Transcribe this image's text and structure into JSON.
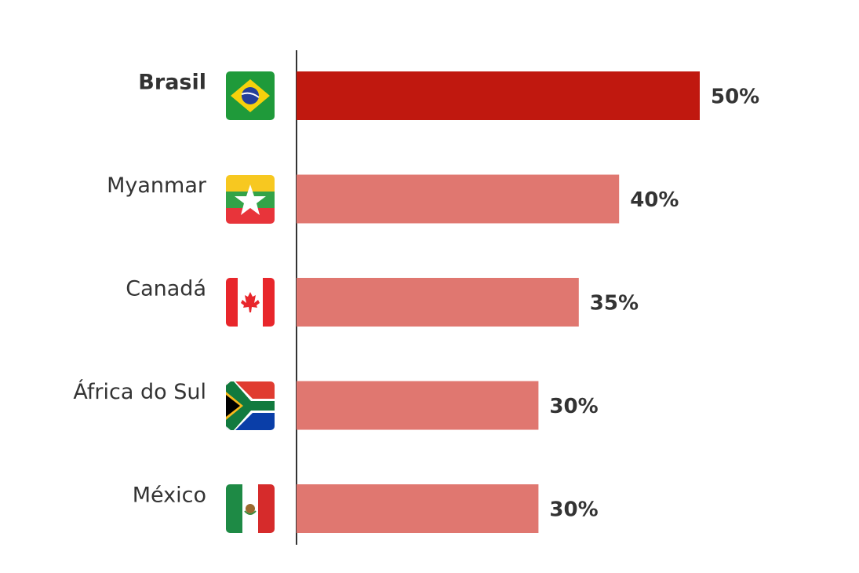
{
  "chart_data": {
    "type": "bar",
    "orientation": "horizontal",
    "categories": [
      "Brasil",
      "Myanmar",
      "Canadá",
      "África do Sul",
      "México"
    ],
    "values": [
      50,
      40,
      35,
      30,
      30
    ],
    "value_labels": [
      "50%",
      "40%",
      "35%",
      "30%",
      "30%"
    ],
    "colors": [
      "#c0180f",
      "#e07770",
      "#e07770",
      "#e07770",
      "#e07770"
    ],
    "highlight": "Brasil"
  }
}
